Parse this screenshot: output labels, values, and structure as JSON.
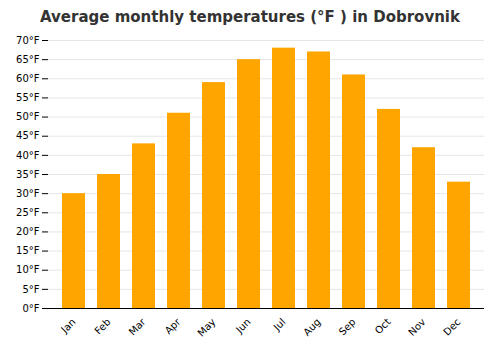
{
  "chart_data": {
    "type": "bar",
    "title": "Average monthly temperatures (°F ) in Dobrovnik",
    "categories": [
      "Jan",
      "Feb",
      "Mar",
      "Apr",
      "May",
      "Jun",
      "Jul",
      "Aug",
      "Sep",
      "Oct",
      "Nov",
      "Dec"
    ],
    "values": [
      30,
      35,
      43,
      51,
      59,
      65,
      68,
      67,
      61,
      52,
      42,
      33
    ],
    "color": "#FFA500",
    "ylim": [
      0,
      70
    ],
    "yticks": [
      {
        "value": 0,
        "label": "0°F"
      },
      {
        "value": 5,
        "label": "5°F"
      },
      {
        "value": 10,
        "label": "10°F"
      },
      {
        "value": 15,
        "label": "15°F"
      },
      {
        "value": 20,
        "label": "20°F"
      },
      {
        "value": 25,
        "label": "25°F"
      },
      {
        "value": 30,
        "label": "30°F"
      },
      {
        "value": 35,
        "label": "35°F"
      },
      {
        "value": 40,
        "label": "40°F"
      },
      {
        "value": 45,
        "label": "45°F"
      },
      {
        "value": 50,
        "label": "50°F"
      },
      {
        "value": 55,
        "label": "55°F"
      },
      {
        "value": 60,
        "label": "60°F"
      },
      {
        "value": 65,
        "label": "65°F"
      },
      {
        "value": 70,
        "label": "70°F"
      }
    ],
    "grid": true
  }
}
